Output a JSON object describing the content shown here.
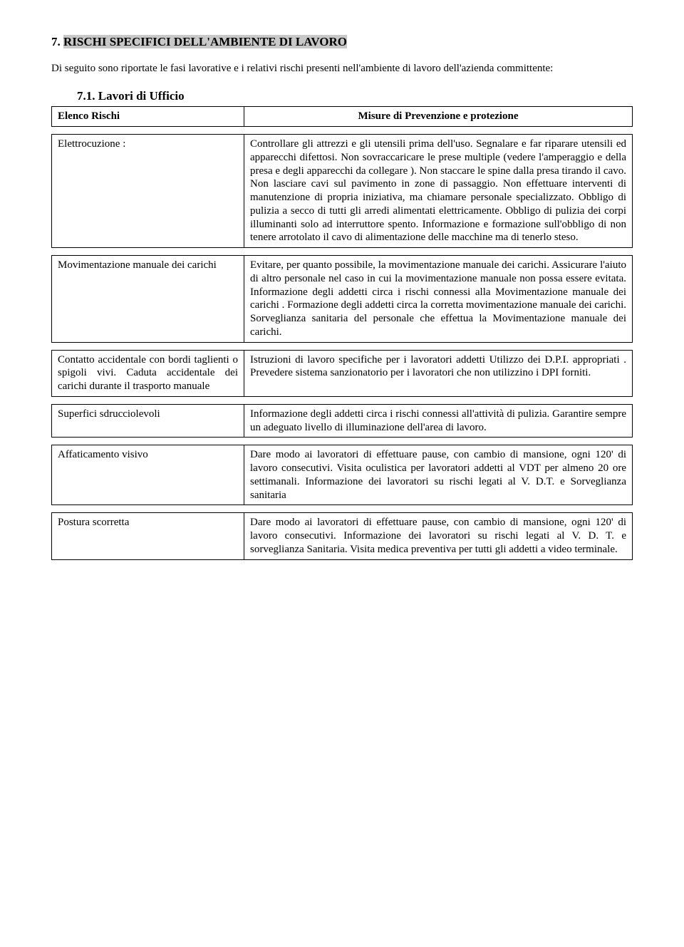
{
  "section": {
    "number": "7.",
    "title": "RISCHI SPECIFICI DELL'AMBIENTE DI LAVORO",
    "intro": "Di seguito sono riportate le fasi lavorative e i relativi rischi presenti nell'ambiente di lavoro dell'azienda committente:",
    "sub_number": "7.1.",
    "sub_title": "Lavori di Ufficio"
  },
  "header": {
    "left": "Elenco Rischi",
    "right": "Misure di Prevenzione e protezione"
  },
  "rows": [
    {
      "risk": "Elettrocuzione :",
      "measure": "Controllare gli attrezzi e gli utensili prima dell'uso. Segnalare e far riparare utensili ed  apparecchi  difettosi. Non sovraccaricare le prese multiple  (vedere l'amperaggio e della presa e degli apparecchi da collegare ). Non  staccare  le spine dalla presa tirando il cavo. Non lasciare cavi sul pavimento in zone di passaggio. Non effettuare interventi di manutenzione di propria iniziativa, ma chiamare personale  specializzato. Obbligo  di  pulizia  a  secco di  tutti  gli  arredi alimentati elettricamente. Obbligo di pulizia dei corpi illuminanti solo ad interruttore spento. Informazione e formazione sull'obbligo di non tenere arrotolato il cavo di alimentazione delle macchine ma di tenerlo steso."
    },
    {
      "risk": "Movimentazione manuale dei carichi",
      "measure": "Evitare, per quanto possibile, la movimentazione manuale dei carichi. Assicurare l'aiuto di altro personale nel caso in cui la movimentazione manuale non possa essere evitata. Informazione  degli  addetti  circa  i  rischi  connessi  alla Movimentazione  manuale  dei  carichi . Formazione degli addetti circa la corretta movimentazione manuale dei carichi. Sorveglianza   sanitaria   del   personale   che  effettua  la Movimentazione  manuale  dei  carichi."
    },
    {
      "risk": "Contatto accidentale con bordi taglienti o  spigoli  vivi. Caduta  accidentale dei carichi durante il trasporto manuale",
      "measure": "Istruzioni di lavoro specifiche per i lavoratori addetti Utilizzo dei D.P.I. appropriati . Prevedere sistema sanzionatorio  per  i lavoratori che non  utilizzino i DPI forniti."
    },
    {
      "risk": "Superfici sdrucciolevoli",
      "measure": "Informazione  degli  addetti  circa i rischi connessi all'attività di   pulizia.   Garantire   sempre   un   adeguato  livello  di illuminazione  dell'area  di  lavoro."
    },
    {
      "risk": "Affaticamento visivo",
      "measure": "Dare modo ai lavoratori di  effettuare pause, con cambio di mansione,  ogni  120' di lavoro consecutivi.  Visita oculistica per lavoratori  addetti al VDT per almeno 20 ore settimanali. Informazione  dei  lavoratori  su rischi legati al V. D.T.  e Sorveglianza  sanitaria"
    },
    {
      "risk": "Postura scorretta",
      "measure": "Dare modo ai lavoratori  di effettuare pause, con cambio di  mansione,  ogni  120' di lavoro consecutivi. Informazione dei  lavoratori  su  rischi  legati  al  V. D. T.  e   sorveglianza Sanitaria.  Visita medica preventiva per tutti gli addetti a video terminale."
    }
  ]
}
